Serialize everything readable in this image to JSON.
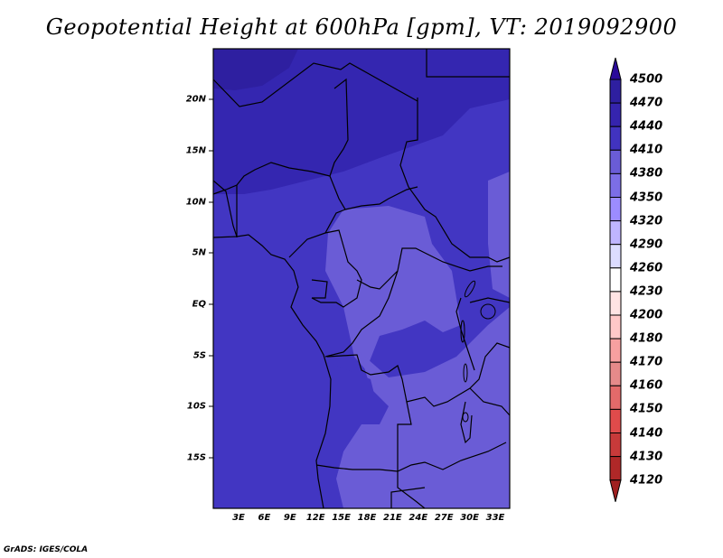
{
  "title": "Geopotential Height at 600hPa [gpm], VT: 2019092900",
  "lat_labels": [
    "20N",
    "15N",
    "10N",
    "5N",
    "EQ",
    "5S",
    "10S",
    "15S"
  ],
  "lon_labels": [
    "3E",
    "6E",
    "9E",
    "12E",
    "15E",
    "18E",
    "21E",
    "24E",
    "27E",
    "30E",
    "33E"
  ],
  "colorbar": {
    "labels": [
      "4500",
      "4470",
      "4440",
      "4410",
      "4380",
      "4350",
      "4320",
      "4290",
      "4260",
      "4230",
      "4200",
      "4180",
      "4170",
      "4160",
      "4150",
      "4140",
      "4130",
      "4120"
    ],
    "colors": [
      "#2e1fa0",
      "#3524ae",
      "#4133c0",
      "#6a5cd6",
      "#7c6ee6",
      "#9c8cff",
      "#bfb5ff",
      "#dcdcff",
      "#ffffff",
      "#ffe4e4",
      "#ffc8c8",
      "#f7a0a0",
      "#e58a8a",
      "#e36a6a",
      "#e04b4b",
      "#c83a3a",
      "#b02828"
    ],
    "top_arrow_color": "#2a0a9a",
    "bottom_arrow_color": "#a02020"
  },
  "map_colors": {
    "dark": "#3426b0",
    "mid": "#4236c2",
    "light": "#6a5cd6"
  },
  "credit": "GrADS: IGES/COLA"
}
